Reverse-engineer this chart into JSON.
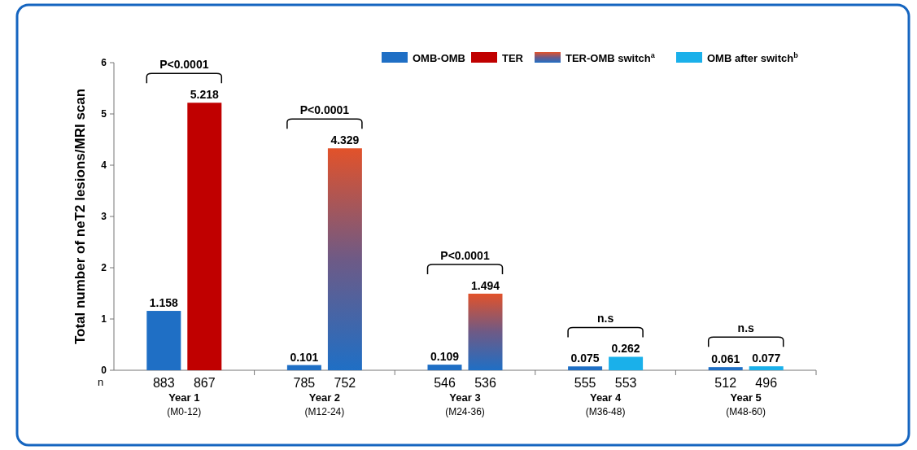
{
  "chart_data": {
    "type": "bar",
    "ylabel": "Total number of neT2 lesions/MRI scan",
    "categories": [
      "Year 1 (M0-12)",
      "Year 2 (M12-24)",
      "Year 3 (M24-36)",
      "Year 4 (M36-48)",
      "Year 5 (M48-60)"
    ],
    "series": [
      {
        "name": "OMB-OMB",
        "color": "#1f6fc5",
        "values": [
          1.158,
          0.101,
          0.109,
          0.075,
          0.061
        ]
      },
      {
        "name": "TER",
        "color": "#c00000",
        "values": [
          5.218,
          null,
          null,
          null,
          null
        ]
      },
      {
        "name": "TER-OMB switch$^{a}$",
        "color": "#6e5a86",
        "values": [
          null,
          4.329,
          1.494,
          null,
          null
        ]
      },
      {
        "name": "OMB after switch$^{b}$",
        "color": "#1ab0ea",
        "values": [
          null,
          null,
          null,
          0.262,
          0.077
        ]
      }
    ],
    "ylim": [
      0,
      6
    ],
    "yticks": [
      0,
      1,
      2,
      3,
      4,
      5,
      6
    ],
    "grid": false,
    "legend": "top right",
    "data_labels": true,
    "annotations": [
      "n",
      "883",
      "867",
      "785",
      "752",
      "546",
      "536",
      "555",
      "553",
      "512",
      "496",
      "P<0.0001",
      "P<0.0001",
      "P<0.0001",
      "n.s",
      "n.s"
    ]
  }
}
